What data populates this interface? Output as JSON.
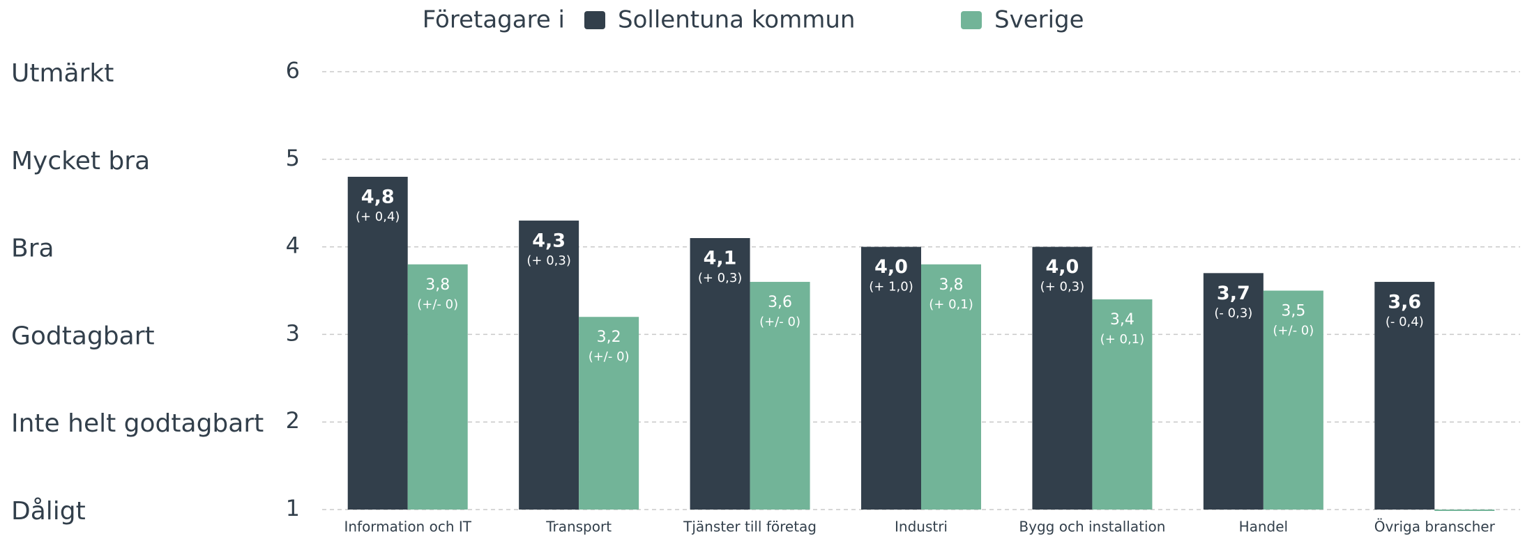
{
  "chart_data": {
    "type": "bar",
    "legend_title": "Företagare i",
    "categories": [
      "Information och IT",
      "Transport",
      "Tjänster till företag",
      "Industri",
      "Bygg och installation",
      "Handel",
      "Övriga branscher"
    ],
    "series": [
      {
        "name": "Sollentuna kommun",
        "color": "#323f4b",
        "values": [
          4.8,
          4.3,
          4.1,
          4.0,
          4.0,
          3.7,
          3.6
        ],
        "value_labels": [
          "4,8",
          "4,3",
          "4,1",
          "4,0",
          "4,0",
          "3,7",
          "3,6"
        ],
        "change_labels": [
          "(+ 0,4)",
          "(+ 0,3)",
          "(+ 0,3)",
          "(+ 1,0)",
          "(+ 0,3)",
          "(- 0,3)",
          "(- 0,4)"
        ]
      },
      {
        "name": "Sverige",
        "color": "#72b498",
        "values": [
          3.8,
          3.2,
          3.6,
          3.8,
          3.4,
          3.5,
          1
        ],
        "value_labels": [
          "3,8",
          "3,2",
          "3,6",
          "3,8",
          "3,4",
          "3,5",
          null
        ],
        "change_labels": [
          "(+/- 0)",
          "(+/- 0)",
          "(+/- 0)",
          "(+ 0,1)",
          "(+ 0,1)",
          "(+/- 0)",
          null
        ]
      }
    ],
    "ylim": [
      1,
      6
    ],
    "yticks": [
      1,
      2,
      3,
      4,
      5,
      6
    ],
    "ytick_names": [
      "Dåligt",
      "Inte helt godtagbart",
      "Godtagbart",
      "Bra",
      "Mycket bra",
      "Utmärkt"
    ],
    "grid": true
  }
}
